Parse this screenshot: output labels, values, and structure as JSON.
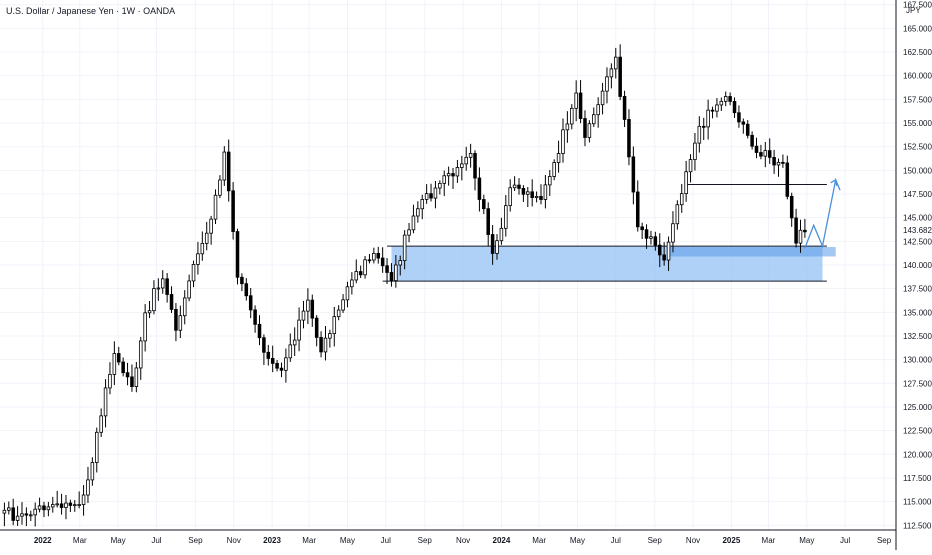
{
  "header": {
    "title": "U.S. Dollar / Japanese Yen · 1W · OANDA",
    "currency": "JPY"
  },
  "colors": {
    "bull": "#ffffff",
    "bear": "#000000",
    "outline": "#000000",
    "zone_fill": "#90bff5",
    "zone_edge": "#5b9ae8",
    "projection": "#4a90d9",
    "line": "#131722",
    "grid": "#f0f3fa",
    "price_tag_bg": "#ffffff"
  },
  "chart_data": {
    "type": "candlestick",
    "title": "U.S. Dollar / Japanese Yen · 1W · OANDA",
    "symbol": "USDJPY",
    "timeframe": "1W",
    "source": "OANDA",
    "grid": true,
    "x_tick_labels": [
      {
        "date": "2022-01-01",
        "label": "2022",
        "bold": true
      },
      {
        "date": "2022-03-01",
        "label": "Mar"
      },
      {
        "date": "2022-05-01",
        "label": "May"
      },
      {
        "date": "2022-07-01",
        "label": "Jul"
      },
      {
        "date": "2022-09-01",
        "label": "Sep"
      },
      {
        "date": "2022-11-01",
        "label": "Nov"
      },
      {
        "date": "2023-01-01",
        "label": "2023",
        "bold": true
      },
      {
        "date": "2023-03-01",
        "label": "Mar"
      },
      {
        "date": "2023-05-01",
        "label": "May"
      },
      {
        "date": "2023-07-01",
        "label": "Jul"
      },
      {
        "date": "2023-09-01",
        "label": "Sep"
      },
      {
        "date": "2023-11-01",
        "label": "Nov"
      },
      {
        "date": "2024-01-01",
        "label": "2024",
        "bold": true
      },
      {
        "date": "2024-03-01",
        "label": "Mar"
      },
      {
        "date": "2024-05-01",
        "label": "May"
      },
      {
        "date": "2024-07-01",
        "label": "Jul"
      },
      {
        "date": "2024-09-01",
        "label": "Sep"
      },
      {
        "date": "2024-11-01",
        "label": "Nov"
      },
      {
        "date": "2025-01-01",
        "label": "2025",
        "bold": true
      },
      {
        "date": "2025-03-01",
        "label": "Mar"
      },
      {
        "date": "2025-05-01",
        "label": "May"
      },
      {
        "date": "2025-07-01",
        "label": "Jul"
      },
      {
        "date": "2025-09-01",
        "label": "Sep"
      }
    ],
    "y_tick_labels": [
      "112.500",
      "115.000",
      "117.500",
      "120.000",
      "122.500",
      "125.000",
      "127.500",
      "130.000",
      "132.500",
      "135.000",
      "137.500",
      "140.000",
      "142.500",
      "145.000",
      "147.500",
      "150.000",
      "152.500",
      "155.000",
      "157.500",
      "160.000",
      "162.500",
      "165.000",
      "167.500"
    ],
    "ylim": [
      112.0,
      168.0
    ],
    "xlim": [
      "2021-10-25",
      "2025-09-20"
    ],
    "last_price": {
      "value": 143.682,
      "label": "143.682"
    },
    "weekly_closes": [
      {
        "date": "2021-11-01",
        "close": 113.9
      },
      {
        "date": "2021-12-06",
        "close": 113.4
      },
      {
        "date": "2021-12-20",
        "close": 114.2
      },
      {
        "date": "2022-01-17",
        "close": 114.9
      },
      {
        "date": "2022-02-28",
        "close": 114.8
      },
      {
        "date": "2022-03-14",
        "close": 117.2
      },
      {
        "date": "2022-03-28",
        "close": 122.5
      },
      {
        "date": "2022-04-25",
        "close": 130.5
      },
      {
        "date": "2022-05-23",
        "close": 127.2
      },
      {
        "date": "2022-06-13",
        "close": 134.9
      },
      {
        "date": "2022-07-11",
        "close": 138.6
      },
      {
        "date": "2022-08-01",
        "close": 133.0
      },
      {
        "date": "2022-08-29",
        "close": 140.2
      },
      {
        "date": "2022-09-26",
        "close": 144.7
      },
      {
        "date": "2022-10-17",
        "close": 151.8
      },
      {
        "date": "2022-11-07",
        "close": 138.9
      },
      {
        "date": "2022-12-19",
        "close": 131.0
      },
      {
        "date": "2023-01-16",
        "close": 128.8
      },
      {
        "date": "2023-02-27",
        "close": 136.2
      },
      {
        "date": "2023-03-20",
        "close": 130.6
      },
      {
        "date": "2023-05-01",
        "close": 137.5
      },
      {
        "date": "2023-06-12",
        "close": 141.3
      },
      {
        "date": "2023-07-10",
        "close": 138.2
      },
      {
        "date": "2023-08-14",
        "close": 145.4
      },
      {
        "date": "2023-10-02",
        "close": 149.3
      },
      {
        "date": "2023-11-13",
        "close": 151.9
      },
      {
        "date": "2023-12-18",
        "close": 141.0
      },
      {
        "date": "2024-01-15",
        "close": 148.1
      },
      {
        "date": "2024-03-04",
        "close": 147.0
      },
      {
        "date": "2024-04-29",
        "close": 158.0
      },
      {
        "date": "2024-05-13",
        "close": 153.7
      },
      {
        "date": "2024-07-01",
        "close": 161.9
      },
      {
        "date": "2024-08-05",
        "close": 144.2
      },
      {
        "date": "2024-09-16",
        "close": 140.5
      },
      {
        "date": "2024-11-11",
        "close": 154.6
      },
      {
        "date": "2024-12-23",
        "close": 157.9
      },
      {
        "date": "2025-02-10",
        "close": 151.8
      },
      {
        "date": "2025-03-24",
        "close": 150.6
      },
      {
        "date": "2025-04-14",
        "close": 142.2
      },
      {
        "date": "2025-04-28",
        "close": 143.7
      }
    ],
    "annotations": {
      "support_zone": {
        "start": "2023-07-10",
        "end": "2025-05-26",
        "low": 138.3,
        "high": 142.0
      },
      "zone_band": {
        "start": "2024-09-23",
        "end": "2025-06-16",
        "low": 140.9,
        "high": 141.9
      },
      "horizontal_lines": [
        {
          "start": "2023-07-03",
          "end": "2025-06-02",
          "value": 142.0
        },
        {
          "start": "2023-06-26",
          "end": "2025-06-02",
          "value": 138.3
        },
        {
          "start": "2024-10-21",
          "end": "2025-06-02",
          "value": 148.5
        }
      ],
      "projection_path": [
        {
          "date": "2025-04-28",
          "value": 141.8
        },
        {
          "date": "2025-05-12",
          "value": 144.2
        },
        {
          "date": "2025-05-26",
          "value": 142.0
        },
        {
          "date": "2025-06-16",
          "value": 149.0
        },
        {
          "date": "2025-06-23",
          "value": 147.9
        }
      ]
    }
  }
}
